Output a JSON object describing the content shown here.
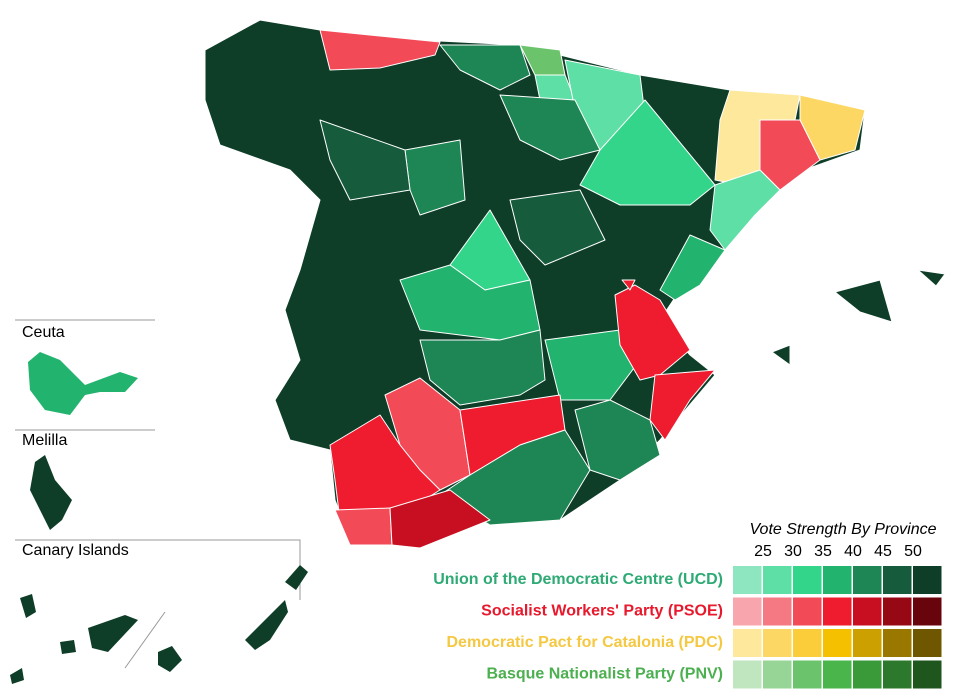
{
  "insets": [
    {
      "label": "Ceuta"
    },
    {
      "label": "Melilla"
    },
    {
      "label": "Canary Islands"
    }
  ],
  "legend": {
    "title": "Vote Strength By Province",
    "scale": [
      25,
      30,
      35,
      40,
      45,
      50
    ],
    "parties": [
      {
        "name": "Union of the Democratic Centre (UCD)",
        "color": "#2eaa75",
        "shades": [
          "#8ee6c0",
          "#5ddfa6",
          "#33d58a",
          "#22b46e",
          "#1e8654",
          "#165c3c",
          "#0e3d28"
        ]
      },
      {
        "name": "Socialist Workers' Party (PSOE)",
        "color": "#e8192c",
        "shades": [
          "#f8a5ad",
          "#f57983",
          "#f34a58",
          "#ee1c2e",
          "#c80f21",
          "#950814",
          "#68040c"
        ]
      },
      {
        "name": "Democratic Pact for Catalonia (PDC)",
        "color": "#f5c842",
        "shades": [
          "#fde89c",
          "#fdd764",
          "#fccd3b",
          "#f5c000",
          "#cca000",
          "#9a7800",
          "#6e5700"
        ]
      },
      {
        "name": "Basque Nationalist Party (PNV)",
        "color": "#4caf50",
        "shades": [
          "#bfe6bf",
          "#96d596",
          "#6bc46b",
          "#4ab54a",
          "#3a9a3a",
          "#2c782c",
          "#1e561e"
        ]
      }
    ]
  }
}
